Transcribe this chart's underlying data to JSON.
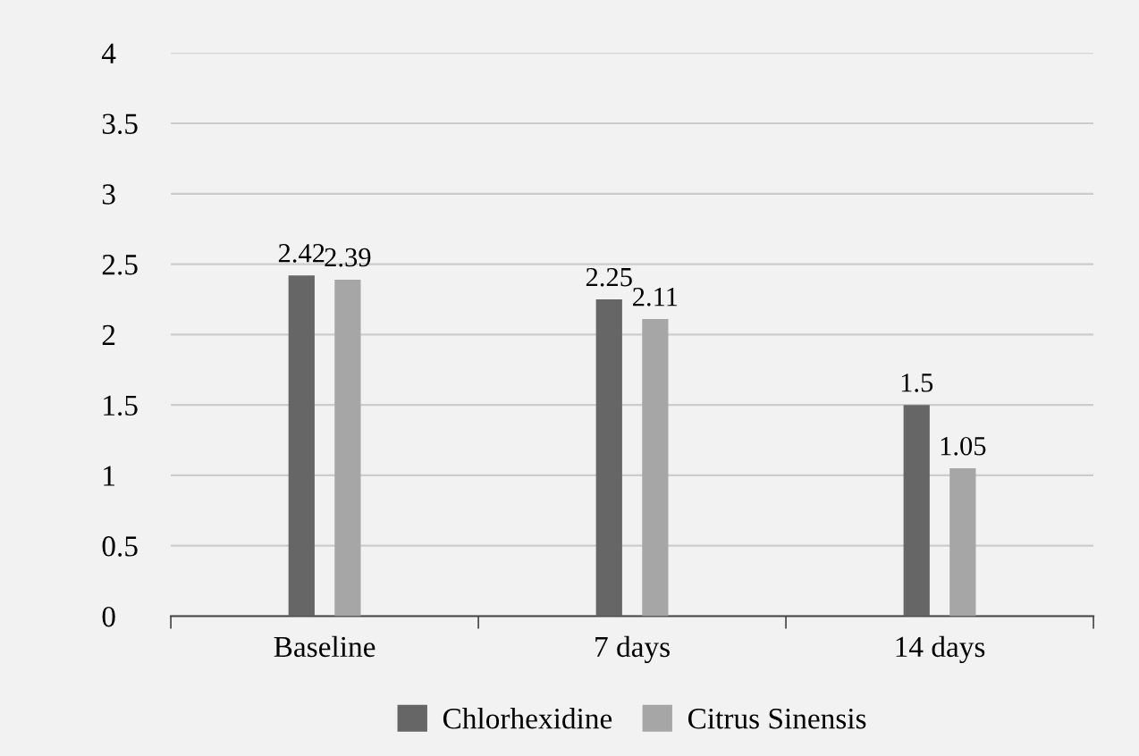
{
  "chart_data": {
    "type": "bar",
    "categories": [
      "Baseline",
      "7 days",
      "14 days"
    ],
    "series": [
      {
        "name": "Chlorhexidine",
        "color": "#666666",
        "values": [
          2.42,
          2.25,
          1.5
        ]
      },
      {
        "name": "Citrus Sinensis",
        "color": "#a6a6a6",
        "values": [
          2.39,
          2.11,
          1.05
        ]
      }
    ],
    "ylim": [
      0,
      4
    ],
    "yticks": [
      0,
      0.5,
      1,
      1.5,
      2,
      2.5,
      3,
      3.5,
      4
    ],
    "grid": "y",
    "legend": "bottom",
    "data_labels": true
  }
}
